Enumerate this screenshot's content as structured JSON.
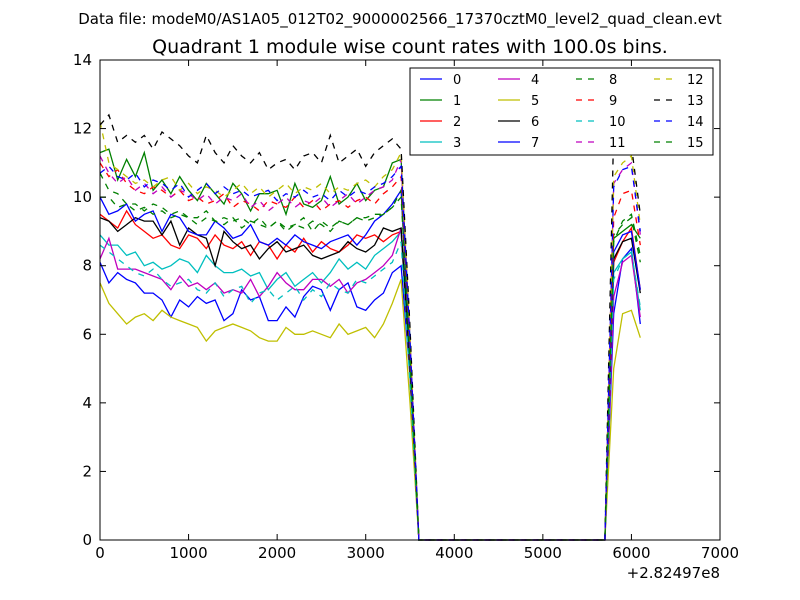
{
  "suptitle": "Data file: modeM0/AS1A05_012T02_9000002566_17370cztM0_level2_quad_clean.evt",
  "chart_data": {
    "type": "line",
    "title": "Quadrant 1 module wise count rates with 100.0s bins.",
    "xlabel": "",
    "ylabel": "",
    "xlim": [
      0,
      7000
    ],
    "ylim": [
      0,
      14
    ],
    "x_offset_label": "+2.82497e8",
    "x_ticks": [
      "0",
      "1000",
      "2000",
      "3000",
      "4000",
      "5000",
      "6000",
      "7000"
    ],
    "y_ticks": [
      "0",
      "2",
      "4",
      "6",
      "8",
      "10",
      "12",
      "14"
    ],
    "grid": false,
    "legend_position": "top-right",
    "x": [
      0,
      100,
      200,
      300,
      400,
      500,
      600,
      700,
      800,
      900,
      1000,
      1100,
      1200,
      1300,
      1400,
      1500,
      1600,
      1700,
      1800,
      1900,
      2000,
      2100,
      2200,
      2300,
      2400,
      2500,
      2600,
      2700,
      2800,
      2900,
      3000,
      3100,
      3200,
      3300,
      3400,
      3500,
      3600,
      3700,
      5700,
      5800,
      5900,
      6000,
      6100
    ],
    "series": [
      {
        "name": "0",
        "color": "#0000ff",
        "dash": "solid",
        "values": [
          8.1,
          7.5,
          7.8,
          7.6,
          7.5,
          7.2,
          7.2,
          7.0,
          6.5,
          7.0,
          6.8,
          7.1,
          6.9,
          7.0,
          6.4,
          6.6,
          7.3,
          7.0,
          7.1,
          6.4,
          6.4,
          6.8,
          6.5,
          7.1,
          7.4,
          7.3,
          6.7,
          7.3,
          7.5,
          6.8,
          6.7,
          7.0,
          7.2,
          7.8,
          8.0,
          4.8,
          0,
          0,
          0,
          6.6,
          8.2,
          8.5,
          6.3
        ]
      },
      {
        "name": "1",
        "color": "#008000",
        "dash": "solid",
        "values": [
          11.3,
          11.4,
          10.5,
          11.1,
          10.6,
          11.3,
          10.2,
          10.5,
          10.1,
          10.6,
          10.2,
          9.9,
          10.4,
          10.1,
          9.8,
          10.4,
          10.1,
          9.6,
          10.1,
          10.1,
          10.2,
          9.5,
          10.4,
          9.8,
          9.7,
          9.9,
          10.6,
          9.8,
          10.0,
          10.4,
          9.9,
          10.2,
          10.3,
          11.0,
          11.1,
          5.8,
          0,
          0,
          0,
          8.8,
          9.0,
          9.2,
          8.8
        ]
      },
      {
        "name": "2",
        "color": "#ff0000",
        "dash": "solid",
        "values": [
          9.5,
          9.3,
          9.1,
          9.6,
          9.2,
          9.0,
          8.8,
          8.9,
          8.6,
          8.5,
          8.9,
          8.8,
          8.5,
          8.9,
          8.6,
          8.5,
          8.7,
          8.3,
          8.7,
          8.6,
          8.2,
          8.6,
          8.4,
          8.8,
          8.4,
          8.7,
          8.5,
          8.4,
          8.6,
          8.9,
          8.8,
          8.9,
          8.7,
          8.9,
          9.0,
          4.8,
          0,
          0,
          0,
          8.1,
          8.7,
          9.1,
          7.3
        ]
      },
      {
        "name": "3",
        "color": "#00bfbf",
        "dash": "solid",
        "values": [
          8.9,
          8.6,
          8.6,
          8.3,
          8.4,
          8.0,
          8.1,
          7.9,
          8.0,
          8.2,
          8.1,
          7.8,
          8.3,
          8.0,
          7.8,
          7.8,
          7.9,
          7.7,
          7.8,
          7.3,
          7.6,
          7.8,
          7.4,
          7.6,
          7.8,
          7.5,
          7.8,
          8.2,
          7.9,
          8.1,
          7.9,
          8.3,
          8.5,
          8.7,
          9.0,
          4.9,
          0,
          0,
          0,
          7.8,
          8.2,
          8.4,
          6.7
        ]
      },
      {
        "name": "4",
        "color": "#bf00bf",
        "dash": "solid",
        "values": [
          8.2,
          8.8,
          7.9,
          7.9,
          7.9,
          7.8,
          7.7,
          7.6,
          7.3,
          7.7,
          7.4,
          7.5,
          7.3,
          7.5,
          7.2,
          7.3,
          7.2,
          7.6,
          7.1,
          7.4,
          7.8,
          7.5,
          7.3,
          7.3,
          7.6,
          7.6,
          7.4,
          7.6,
          7.2,
          7.5,
          7.6,
          7.8,
          8.0,
          8.3,
          9.1,
          5.1,
          0,
          0,
          0,
          7.1,
          8.1,
          8.3,
          6.5
        ]
      },
      {
        "name": "5",
        "color": "#bfbf00",
        "dash": "solid",
        "values": [
          7.5,
          6.9,
          6.6,
          6.3,
          6.5,
          6.6,
          6.4,
          6.7,
          6.5,
          6.4,
          6.3,
          6.2,
          5.8,
          6.1,
          6.2,
          6.3,
          6.2,
          6.1,
          5.9,
          5.8,
          5.8,
          6.2,
          6.0,
          6.0,
          6.1,
          6.0,
          5.9,
          6.3,
          6.0,
          6.1,
          6.2,
          5.9,
          6.3,
          6.9,
          7.6,
          4.0,
          0,
          0,
          0,
          5.0,
          6.6,
          6.7,
          5.9
        ]
      },
      {
        "name": "6",
        "color": "#000000",
        "dash": "solid",
        "values": [
          9.4,
          9.3,
          9.0,
          9.2,
          9.4,
          9.3,
          9.3,
          8.9,
          9.3,
          8.6,
          9.1,
          8.9,
          8.8,
          8.0,
          9.0,
          8.7,
          8.5,
          8.6,
          8.2,
          8.5,
          8.7,
          8.4,
          8.5,
          8.6,
          8.3,
          8.2,
          8.3,
          8.4,
          8.7,
          8.5,
          8.4,
          8.6,
          9.1,
          9.0,
          9.1,
          5.0,
          0,
          0,
          0,
          8.2,
          8.7,
          8.8,
          7.2
        ]
      },
      {
        "name": "7",
        "color": "#0000ff",
        "dash": "solid",
        "values": [
          10.0,
          9.5,
          9.6,
          9.8,
          9.3,
          9.5,
          9.6,
          9.0,
          9.5,
          9.4,
          9.0,
          8.9,
          8.9,
          9.3,
          9.1,
          8.8,
          8.9,
          9.2,
          8.7,
          8.6,
          8.8,
          8.6,
          8.9,
          8.7,
          8.6,
          8.5,
          8.7,
          8.8,
          8.9,
          8.6,
          8.9,
          9.3,
          9.5,
          9.8,
          10.2,
          5.3,
          0,
          0,
          0,
          8.4,
          8.9,
          9.0,
          7.3
        ]
      },
      {
        "name": "8",
        "color": "#008000",
        "dash": "dashed",
        "values": [
          10.7,
          10.2,
          10.1,
          9.8,
          9.8,
          9.6,
          9.8,
          9.7,
          9.5,
          9.6,
          9.4,
          9.4,
          9.6,
          9.3,
          9.4,
          9.3,
          9.4,
          9.2,
          9.4,
          9.1,
          9.3,
          9.1,
          9.2,
          9.4,
          9.0,
          9.3,
          9.1,
          9.3,
          9.2,
          9.4,
          9.4,
          9.5,
          9.5,
          9.7,
          10.2,
          5.4,
          0,
          0,
          0,
          8.9,
          9.2,
          9.4,
          8.1
        ]
      },
      {
        "name": "9",
        "color": "#ff0000",
        "dash": "dashed",
        "values": [
          11.0,
          10.6,
          10.8,
          10.4,
          10.2,
          10.1,
          10.3,
          10.2,
          10.0,
          10.2,
          9.9,
          10.0,
          9.8,
          9.9,
          10.1,
          9.7,
          9.9,
          9.8,
          9.6,
          9.9,
          9.8,
          9.7,
          10.0,
          9.7,
          9.9,
          9.6,
          9.8,
          9.9,
          9.7,
          9.9,
          10.0,
          9.8,
          10.1,
          10.3,
          10.6,
          5.6,
          0,
          0,
          0,
          9.4,
          10.1,
          10.2,
          8.6
        ]
      },
      {
        "name": "10",
        "color": "#00bfbf",
        "dash": "dashed",
        "values": [
          8.6,
          8.4,
          8.2,
          8.0,
          7.8,
          7.7,
          7.9,
          7.6,
          7.4,
          7.5,
          7.6,
          7.3,
          7.2,
          7.5,
          7.1,
          7.3,
          7.4,
          6.9,
          7.2,
          7.3,
          7.0,
          7.2,
          7.4,
          7.0,
          7.3,
          7.1,
          7.5,
          7.3,
          7.2,
          7.6,
          7.5,
          7.7,
          7.9,
          8.1,
          8.7,
          4.6,
          0,
          0,
          0,
          7.6,
          8.2,
          8.4,
          6.8
        ]
      },
      {
        "name": "11",
        "color": "#bf00bf",
        "dash": "dashed",
        "values": [
          11.2,
          10.7,
          10.4,
          10.6,
          10.2,
          10.4,
          10.1,
          10.3,
          10.0,
          10.2,
          10.1,
          9.9,
          10.1,
          9.8,
          10.0,
          9.9,
          10.1,
          9.7,
          9.9,
          9.6,
          9.8,
          10.0,
          9.7,
          9.9,
          9.8,
          10.0,
          9.7,
          9.9,
          10.1,
          9.8,
          10.0,
          10.2,
          10.3,
          10.5,
          11.1,
          5.9,
          0,
          0,
          0,
          10.4,
          10.8,
          11.0,
          8.9
        ]
      },
      {
        "name": "12",
        "color": "#bfbf00",
        "dash": "dashed",
        "values": [
          12.2,
          11.0,
          10.8,
          10.6,
          10.4,
          10.5,
          10.3,
          10.5,
          10.6,
          10.2,
          10.4,
          10.1,
          10.3,
          10.2,
          10.0,
          10.2,
          10.4,
          10.1,
          10.3,
          10.0,
          10.2,
          10.4,
          10.1,
          10.3,
          10.2,
          10.4,
          10.1,
          10.3,
          10.2,
          10.4,
          10.5,
          10.3,
          10.6,
          10.8,
          11.3,
          6.0,
          0,
          0,
          0,
          10.6,
          11.0,
          11.2,
          9.2
        ]
      },
      {
        "name": "13",
        "color": "#000000",
        "dash": "dashed",
        "values": [
          12.1,
          12.4,
          11.6,
          11.8,
          11.6,
          11.8,
          11.4,
          11.9,
          11.7,
          11.5,
          11.2,
          11.0,
          11.8,
          11.3,
          11.0,
          11.5,
          11.2,
          11.0,
          11.3,
          10.8,
          11.0,
          11.1,
          10.8,
          11.2,
          11.3,
          11.0,
          11.8,
          11.0,
          11.2,
          11.4,
          10.9,
          11.3,
          11.5,
          11.7,
          11.4,
          6.2,
          0,
          0,
          0,
          12.0,
          11.8,
          11.5,
          9.5
        ]
      },
      {
        "name": "14",
        "color": "#0000ff",
        "dash": "dashed",
        "values": [
          10.7,
          10.9,
          10.6,
          10.5,
          10.7,
          10.3,
          10.5,
          10.4,
          10.2,
          10.4,
          10.0,
          10.2,
          10.4,
          10.1,
          10.3,
          10.1,
          10.2,
          10.0,
          10.1,
          10.2,
          9.9,
          10.1,
          10.0,
          10.2,
          10.0,
          10.1,
          9.9,
          10.2,
          10.0,
          10.2,
          10.1,
          10.3,
          10.4,
          10.6,
          10.9,
          5.8,
          0,
          0,
          0,
          10.3,
          10.8,
          10.9,
          9.0
        ]
      },
      {
        "name": "15",
        "color": "#008000",
        "dash": "dashed",
        "values": [
          10.0,
          10.0,
          9.7,
          9.8,
          9.6,
          9.7,
          9.5,
          9.6,
          9.4,
          9.5,
          9.4,
          9.2,
          9.4,
          9.3,
          9.2,
          9.4,
          9.1,
          9.3,
          9.2,
          9.1,
          9.3,
          9.0,
          9.2,
          9.1,
          9.3,
          9.2,
          9.0,
          9.3,
          9.2,
          9.4,
          9.3,
          9.4,
          9.5,
          9.7,
          10.0,
          5.3,
          0,
          0,
          0,
          8.7,
          9.3,
          9.5,
          8.3
        ]
      }
    ]
  }
}
